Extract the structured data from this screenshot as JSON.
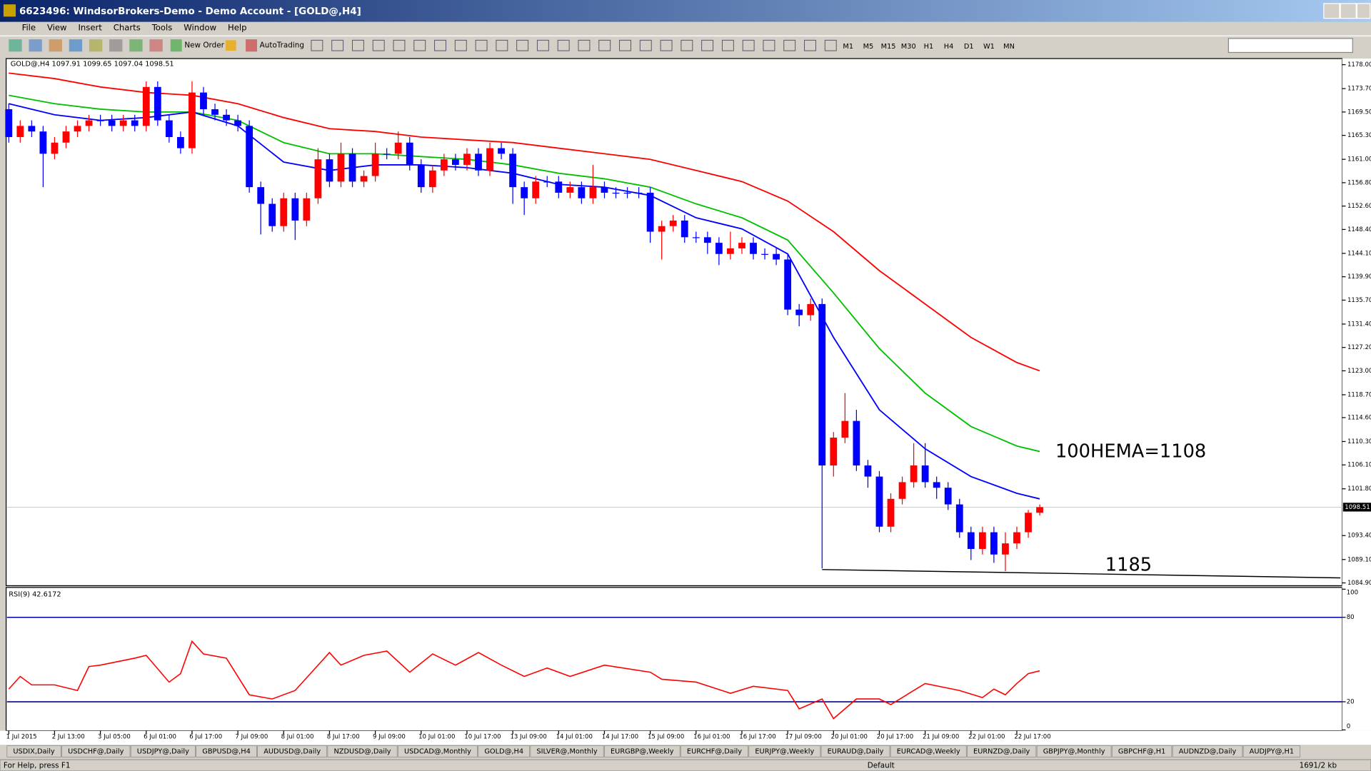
{
  "window": {
    "title": "6623496: WindsorBrokers-Demo - Demo Account - [GOLD@,H4]",
    "menu": [
      "File",
      "View",
      "Insert",
      "Charts",
      "Tools",
      "Window",
      "Help"
    ],
    "toolbar": [
      "New Order",
      "AutoTrading"
    ],
    "timeframes": [
      "M1",
      "M5",
      "M15",
      "M30",
      "H1",
      "H4",
      "D1",
      "W1",
      "MN"
    ]
  },
  "chart_data": [
    {
      "type": "candlestick",
      "title": "GOLD@,H4  1097.91 1099.65 1097.04 1098.51",
      "categories": [
        "1 Jul 2015",
        null,
        null,
        null,
        "2 Jul 13:00",
        null,
        null,
        null,
        "3 Jul 05:00",
        null,
        null,
        null,
        "6 Jul 01:00",
        null,
        null,
        null,
        "6 Jul 17:00",
        null,
        null,
        null,
        "7 Jul 09:00",
        null,
        null,
        null,
        "8 Jul 01:00",
        null,
        null,
        null,
        "8 Jul 17:00",
        null,
        null,
        null,
        "9 Jul 09:00",
        null,
        null,
        null,
        "10 Jul 01:00",
        null,
        null,
        null,
        "10 Jul 17:00",
        null,
        null,
        null,
        "13 Jul 09:00",
        null,
        null,
        null,
        "14 Jul 01:00",
        null,
        null,
        null,
        "14 Jul 17:00",
        null,
        null,
        null,
        "15 Jul 09:00",
        null,
        null,
        null,
        "16 Jul 01:00",
        null,
        null,
        null,
        "16 Jul 17:00",
        null,
        null,
        null,
        "17 Jul 09:00",
        null,
        null,
        null,
        "20 Jul 01:00",
        null,
        null,
        null,
        "20 Jul 17:00",
        null,
        null,
        null,
        "21 Jul 09:00",
        null,
        null,
        null,
        "22 Jul 01:00",
        null,
        null,
        null,
        "22 Jul 17:00",
        null,
        null
      ],
      "open": [
        1170,
        1165,
        1167,
        1166,
        1162,
        1164,
        1166,
        1167,
        1168,
        1168,
        1167,
        1168,
        1167,
        1174,
        1168,
        1165,
        1163,
        1173,
        1170,
        1169,
        1168,
        1167,
        1156,
        1153,
        1149,
        1154,
        1150,
        1154,
        1161,
        1157,
        1162,
        1157,
        1158,
        1162,
        1162,
        1164,
        1160,
        1156,
        1159,
        1161,
        1160,
        1162,
        1159,
        1163,
        1162,
        1156,
        1154,
        1157,
        1157,
        1155,
        1156,
        1154,
        1156,
        1155,
        1155,
        1155,
        1155,
        1148,
        1149,
        1150,
        1147,
        1147,
        1146,
        1144,
        1145,
        1146,
        1144,
        1144,
        1143,
        1134,
        1133,
        1135,
        1106,
        1111,
        1114,
        1106,
        1104,
        1095,
        1100,
        1103,
        1106,
        1103,
        1102,
        1099,
        1094,
        1091,
        1094,
        1090,
        1092,
        1094,
        1097.5
      ],
      "high": [
        1171,
        1168,
        1168,
        1167,
        1165,
        1167,
        1168,
        1169,
        1169,
        1169,
        1169,
        1169,
        1175,
        1175,
        1169,
        1166,
        1175,
        1174,
        1171,
        1170,
        1169,
        1168,
        1157,
        1154,
        1155,
        1155,
        1155,
        1163,
        1162,
        1164,
        1163,
        1159,
        1164,
        1163,
        1166,
        1165,
        1161,
        1160,
        1162,
        1162,
        1163,
        1163,
        1164,
        1164,
        1163,
        1157,
        1158,
        1158,
        1158,
        1157,
        1157,
        1160,
        1157,
        1156,
        1156,
        1156,
        1156,
        1150,
        1151,
        1151,
        1148,
        1148,
        1147,
        1148,
        1147,
        1147,
        1145,
        1145,
        1144,
        1135,
        1136,
        1136,
        1112,
        1119,
        1116,
        1107,
        1105,
        1101,
        1104,
        1110,
        1110,
        1104,
        1103,
        1100,
        1095,
        1095,
        1095,
        1094,
        1095,
        1098,
        1099
      ],
      "low": [
        1164,
        1164,
        1165,
        1156,
        1161,
        1163,
        1165,
        1166,
        1167,
        1166,
        1166,
        1166,
        1166,
        1167,
        1164,
        1162,
        1162,
        1169,
        1168,
        1167,
        1166,
        1155,
        1147.5,
        1148,
        1148,
        1146.5,
        1149,
        1153,
        1156,
        1156,
        1156,
        1156,
        1157,
        1161,
        1161,
        1159,
        1155,
        1155,
        1158,
        1159,
        1159,
        1158,
        1158,
        1161,
        1153,
        1151,
        1153,
        1156,
        1154,
        1154,
        1153,
        1153,
        1154,
        1154,
        1154,
        1154,
        1146,
        1143,
        1148,
        1146,
        1146,
        1144,
        1142,
        1143,
        1144,
        1143,
        1143,
        1142,
        1133,
        1131,
        1132,
        1087.5,
        1104,
        1110,
        1105,
        1102,
        1094,
        1094,
        1099,
        1102,
        1102,
        1100,
        1098,
        1093,
        1089,
        1090,
        1088.5,
        1087,
        1091,
        1093,
        1097
      ],
      "close": [
        1165,
        1167,
        1166,
        1162,
        1164,
        1166,
        1167,
        1168,
        1168,
        1167,
        1168,
        1167,
        1174,
        1168,
        1165,
        1163,
        1173,
        1170,
        1169,
        1168,
        1167,
        1156,
        1153,
        1149,
        1154,
        1150,
        1154,
        1161,
        1157,
        1162,
        1157,
        1158,
        1162,
        1162,
        1164,
        1160,
        1156,
        1159,
        1161,
        1160,
        1162,
        1159,
        1163,
        1162,
        1156,
        1154,
        1157,
        1157,
        1155,
        1156,
        1154,
        1156,
        1155,
        1155,
        1155,
        1155,
        1148,
        1149,
        1150,
        1147,
        1147,
        1146,
        1144,
        1145,
        1146,
        1144,
        1144,
        1143,
        1134,
        1133,
        1135,
        1106,
        1111,
        1114,
        1106,
        1104,
        1095,
        1100,
        1103,
        1106,
        1103,
        1102,
        1099,
        1094,
        1091,
        1094,
        1090,
        1092,
        1094,
        1097.5,
        1098.5
      ],
      "up_color": "#ff0000",
      "down_color": "#0000ff",
      "xlim": [
        -0.23,
        116.4
      ],
      "ylim": [
        1084.4,
        1179.1
      ],
      "yticks": [
        {
          "value": 1178,
          "label": "1178.00"
        },
        {
          "value": 1173.7,
          "label": "1173.70"
        },
        {
          "value": 1169.5,
          "label": "1169.50"
        },
        {
          "value": 1165.3,
          "label": "1165.30"
        },
        {
          "value": 1161,
          "label": "1161.00"
        },
        {
          "value": 1156.8,
          "label": "1156.80"
        },
        {
          "value": 1152.6,
          "label": "1152.60"
        },
        {
          "value": 1148.4,
          "label": "1148.40"
        },
        {
          "value": 1144.1,
          "label": "1144.10"
        },
        {
          "value": 1139.9,
          "label": "1139.90"
        },
        {
          "value": 1135.7,
          "label": "1135.70"
        },
        {
          "value": 1131.4,
          "label": "1131.40"
        },
        {
          "value": 1127.2,
          "label": "1127.20"
        },
        {
          "value": 1123,
          "label": "1123.00"
        },
        {
          "value": 1118.7,
          "label": "1118.70"
        },
        {
          "value": 1114.6,
          "label": "1114.60"
        },
        {
          "value": 1110.3,
          "label": "1110.30"
        },
        {
          "value": 1106.1,
          "label": "1106.10"
        },
        {
          "value": 1101.8,
          "label": "1101.80"
        },
        {
          "value": 1093.4,
          "label": "1093.40"
        },
        {
          "value": 1089.1,
          "label": "1089.10"
        },
        {
          "value": 1084.9,
          "label": "1084.90"
        }
      ],
      "last_price": 1098.51,
      "lines": [
        {
          "color": "#ff0000",
          "x": [
            0,
            4,
            8,
            12,
            16,
            20,
            24,
            28,
            32,
            36,
            40,
            44,
            48,
            52,
            56,
            60,
            64,
            68,
            72,
            76,
            80,
            84,
            88,
            90
          ],
          "values": [
            1176.5,
            1175.5,
            1174,
            1173,
            1172.5,
            1171,
            1168.5,
            1166.5,
            1166,
            1165,
            1164.5,
            1164,
            1163,
            1162,
            1161,
            1159,
            1157,
            1153.5,
            1148,
            1141,
            1135,
            1129,
            1124.5,
            1123
          ]
        },
        {
          "color": "#00c000",
          "x": [
            0,
            4,
            8,
            12,
            16,
            20,
            24,
            28,
            32,
            36,
            40,
            44,
            48,
            52,
            56,
            60,
            64,
            68,
            72,
            76,
            80,
            84,
            88,
            90
          ],
          "values": [
            1172.5,
            1171,
            1170,
            1169.5,
            1169.5,
            1168,
            1164,
            1162,
            1162,
            1161.5,
            1161,
            1160,
            1158.5,
            1157.5,
            1156,
            1153,
            1150.5,
            1146.5,
            1137,
            1127,
            1119,
            1113,
            1109.5,
            1108.5
          ]
        },
        {
          "color": "#0000ff",
          "x": [
            0,
            4,
            8,
            12,
            16,
            20,
            24,
            28,
            32,
            36,
            40,
            44,
            48,
            52,
            56,
            60,
            64,
            68,
            72,
            76,
            80,
            84,
            88,
            90
          ],
          "values": [
            1171,
            1169,
            1168,
            1168.5,
            1169.5,
            1167,
            1160.5,
            1159,
            1160,
            1160,
            1159.5,
            1158.5,
            1156.5,
            1156,
            1154.5,
            1150.5,
            1148.5,
            1144,
            1129,
            1116,
            1109,
            1104,
            1101,
            1100
          ]
        }
      ],
      "trendline": [
        1087.3,
        1085.8
      ],
      "annotations": [
        "100HEMA=1108",
        "1185"
      ]
    },
    {
      "type": "line",
      "title": "RSI(9) 42.6172",
      "color": "#ff0000",
      "x": [
        0,
        1,
        2,
        3,
        4,
        6,
        7,
        8,
        11,
        12,
        14,
        15,
        16,
        17,
        19,
        21,
        23,
        25,
        28,
        29,
        31,
        33,
        35,
        37,
        39,
        41,
        43,
        45,
        47,
        49,
        52,
        56,
        57,
        60,
        63,
        65,
        68,
        69,
        71,
        72,
        74,
        76,
        77,
        79,
        80,
        83,
        85,
        86,
        87,
        88,
        89,
        90
      ],
      "values": [
        29,
        38,
        32,
        32,
        32,
        28,
        45,
        46,
        51,
        53,
        34,
        40,
        63,
        54,
        51,
        25,
        22,
        28,
        55,
        46,
        53,
        56,
        41,
        54,
        46,
        55,
        46,
        38,
        44,
        38,
        46,
        41,
        36,
        34,
        26,
        31,
        28,
        15,
        22,
        8,
        22,
        22,
        18,
        28,
        33,
        28,
        23,
        29,
        25,
        33,
        40,
        42
      ],
      "xlim": [
        -0.23,
        116.4
      ],
      "ylim": [
        0,
        100
      ],
      "yticks": [
        0,
        20,
        80,
        100
      ],
      "levels": [
        20,
        80
      ],
      "level_color": "#000099"
    }
  ],
  "tabs": [
    "USDIX,Daily",
    "USDCHF@,Daily",
    "USDJPY@,Daily",
    "GBPUSD@,H4",
    "AUDUSD@,Daily",
    "NZDUSD@,Daily",
    "USDCAD@,Monthly",
    "GOLD@,H4",
    "SILVER@,Monthly",
    "EURGBP@,Weekly",
    "EURCHF@,Daily",
    "EURJPY@,Weekly",
    "EURAUD@,Daily",
    "EURCAD@,Weekly",
    "EURNZD@,Daily",
    "GBPJPY@,Monthly",
    "GBPCHF@,H1",
    "AUDNZD@,Daily",
    "AUDJPY@,H1"
  ],
  "status": {
    "help": "For Help, press F1",
    "profile": "Default",
    "traffic": "1691/2 kb"
  }
}
